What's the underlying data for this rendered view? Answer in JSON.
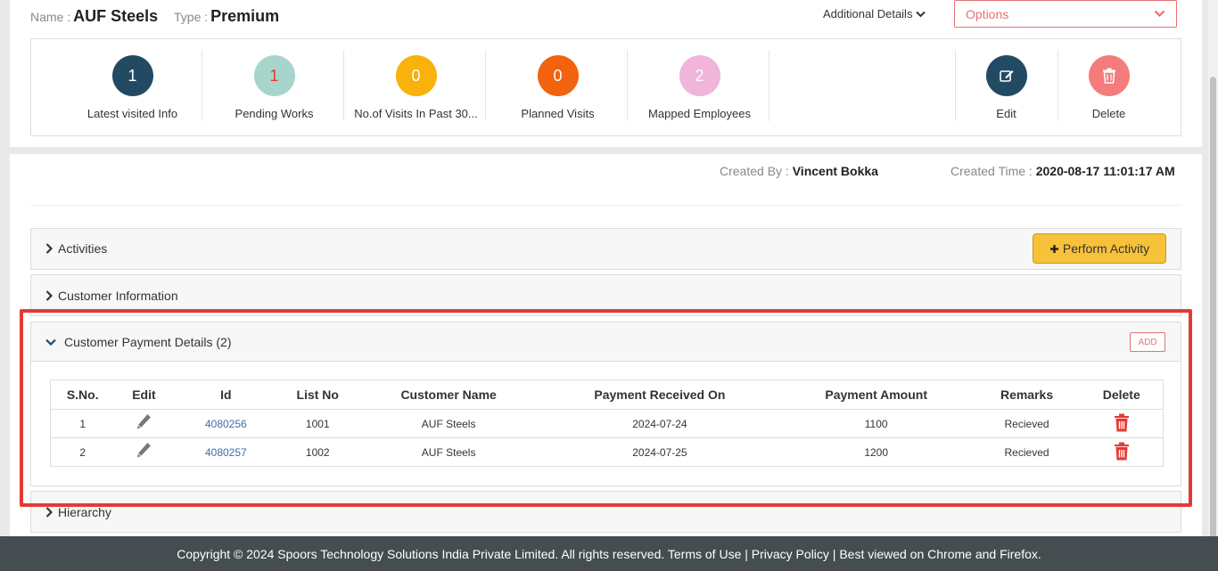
{
  "header": {
    "name_label": "Name :",
    "name_value": "AUF Steels",
    "type_label": "Type :",
    "type_value": "Premium",
    "additional_details": "Additional Details",
    "options_label": "Options"
  },
  "stats": [
    {
      "value": "1",
      "label": "Latest visited Info",
      "color": "#234a63",
      "text_color": "#ffffff"
    },
    {
      "value": "1",
      "label": "Pending Works",
      "color": "#a8d5cb",
      "text_color": "#e53935"
    },
    {
      "value": "0",
      "label": "No.of Visits In Past 30...",
      "color": "#f9b10b",
      "text_color": "#ffffff"
    },
    {
      "value": "0",
      "label": "Planned Visits",
      "color": "#f2620f",
      "text_color": "#ffffff"
    },
    {
      "value": "2",
      "label": "Mapped Employees",
      "color": "#f0b5d8",
      "text_color": "#ffffff"
    }
  ],
  "actions": [
    {
      "label": "Edit",
      "icon": "edit-icon",
      "color": "#234a63"
    },
    {
      "label": "Delete",
      "icon": "trash-icon",
      "color": "#f47c7c"
    }
  ],
  "created": {
    "by_label": "Created By :",
    "by_value": "Vincent Bokka",
    "time_label": "Created Time :",
    "time_value": "2020-08-17 11:01:17 AM"
  },
  "panels": {
    "activities": "Activities",
    "perform_activity": "Perform Activity",
    "customer_information": "Customer Information",
    "payment_details": "Customer Payment Details (2)",
    "add": "ADD",
    "hierarchy": "Hierarchy"
  },
  "table": {
    "columns": [
      "S.No.",
      "Edit",
      "Id",
      "List No",
      "Customer Name",
      "Payment Received On",
      "Payment Amount",
      "Remarks",
      "Delete"
    ],
    "rows": [
      {
        "sno": "1",
        "id": "4080256",
        "list_no": "1001",
        "customer": "AUF Steels",
        "received_on": "2024-07-24",
        "amount": "1100",
        "remarks": "Recieved"
      },
      {
        "sno": "2",
        "id": "4080257",
        "list_no": "1002",
        "customer": "AUF Steels",
        "received_on": "2024-07-25",
        "amount": "1200",
        "remarks": "Recieved"
      }
    ]
  },
  "footer": {
    "text": "Copyright © 2024 Spoors Technology Solutions India Private Limited. All rights reserved. Terms of Use | Privacy Policy | Best viewed on Chrome and Firefox."
  }
}
